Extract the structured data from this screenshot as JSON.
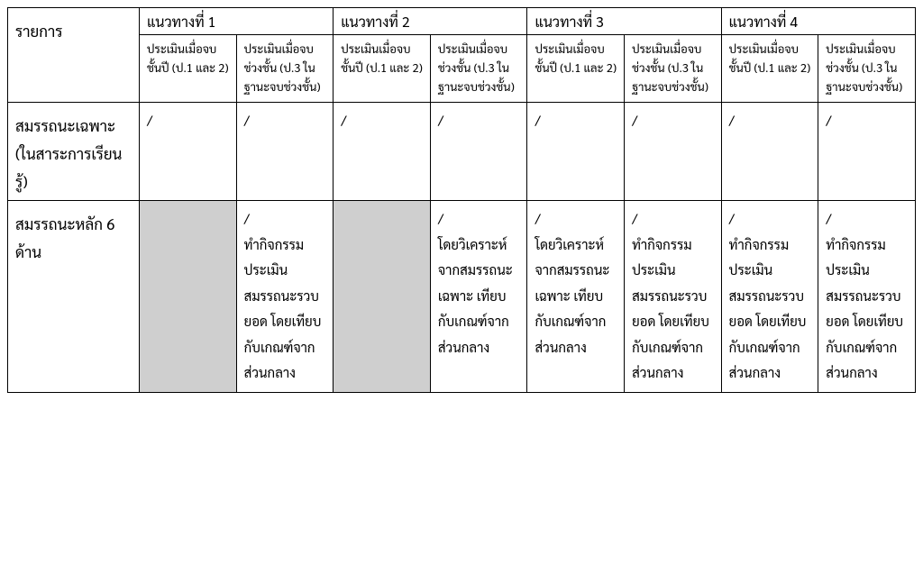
{
  "colors": {
    "background": "#ffffff",
    "border": "#000000",
    "text": "#000000",
    "shaded_cell": "#cfcfcf"
  },
  "fonts": {
    "base_family": "Tahoma",
    "group_head_size_pt": 12,
    "sub_head_size_pt": 10,
    "row_label_size_pt": 13,
    "cell_size_pt": 11
  },
  "header": {
    "row_label": "รายการ",
    "groups": [
      "แนวทางที่ 1",
      "แนวทางที่ 2",
      "แนวทางที่ 3",
      "แนวทางที่ 4"
    ],
    "sub_a": "ประเมินเมื่อจบชั้นปี (ป.1 และ 2)",
    "sub_b": "ประเมินเมื่อจบช่วงชั้น (ป.3 ในฐานะจบช่วงชั้น)"
  },
  "rows": [
    {
      "label": "สมรรถนะเฉพาะ (ในสาระการเรียนรู้)",
      "cells": [
        {
          "text": "/",
          "shaded": false
        },
        {
          "text": "/",
          "shaded": false
        },
        {
          "text": "/",
          "shaded": false
        },
        {
          "text": "/",
          "shaded": false
        },
        {
          "text": "/",
          "shaded": false
        },
        {
          "text": "/",
          "shaded": false
        },
        {
          "text": "/",
          "shaded": false
        },
        {
          "text": "/",
          "shaded": false
        }
      ]
    },
    {
      "label": "สมรรถนะหลัก 6 ด้าน",
      "cells": [
        {
          "text": "",
          "shaded": true
        },
        {
          "text": "/\nทำกิจกรรมประเมินสมรรถนะรวบยอด โดยเทียบกับเกณฑ์จากส่วนกลาง",
          "shaded": false
        },
        {
          "text": "",
          "shaded": true
        },
        {
          "text": "/\nโดยวิเคราะห์จากสมรรถนะเฉพาะ เทียบกับเกณฑ์จากส่วนกลาง",
          "shaded": false
        },
        {
          "text": "/\nโดยวิเคราะห์จากสมรรถนะเฉพาะ เทียบกับเกณฑ์จากส่วนกลาง",
          "shaded": false
        },
        {
          "text": "/\nทำกิจกรรมประเมินสมรรถนะรวบยอด โดยเทียบกับเกณฑ์จากส่วนกลาง",
          "shaded": false
        },
        {
          "text": "/\nทำกิจกรรมประเมินสมรรถนะรวบยอด โดยเทียบกับเกณฑ์จากส่วนกลาง",
          "shaded": false
        },
        {
          "text": "/\nทำกิจกรรมประเมินสมรรถนะรวบยอด โดยเทียบกับเกณฑ์จากส่วนกลาง",
          "shaded": false
        }
      ]
    }
  ]
}
